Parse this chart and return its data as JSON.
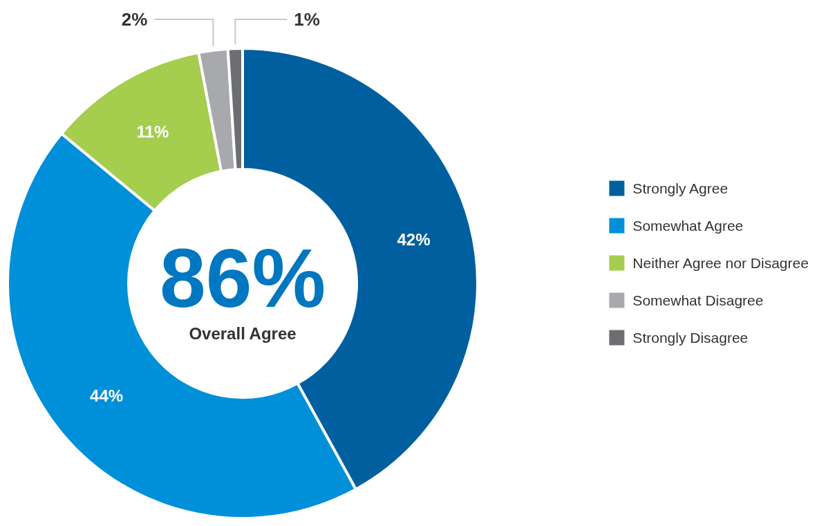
{
  "chart_data": {
    "type": "donut",
    "categories": [
      "Strongly Agree",
      "Somewhat Agree",
      "Neither Agree nor Disagree",
      "Somewhat Disagree",
      "Strongly Disagree"
    ],
    "values": [
      42,
      44,
      11,
      2,
      1
    ],
    "colors": [
      "#00609f",
      "#0090d9",
      "#a5cd4e",
      "#a7a9ac",
      "#6d6e71"
    ],
    "value_labels": [
      "42%",
      "44%",
      "11%",
      "2%",
      "1%"
    ],
    "annotations": [
      "86%",
      "Overall Agree"
    ],
    "legend": "right"
  }
}
